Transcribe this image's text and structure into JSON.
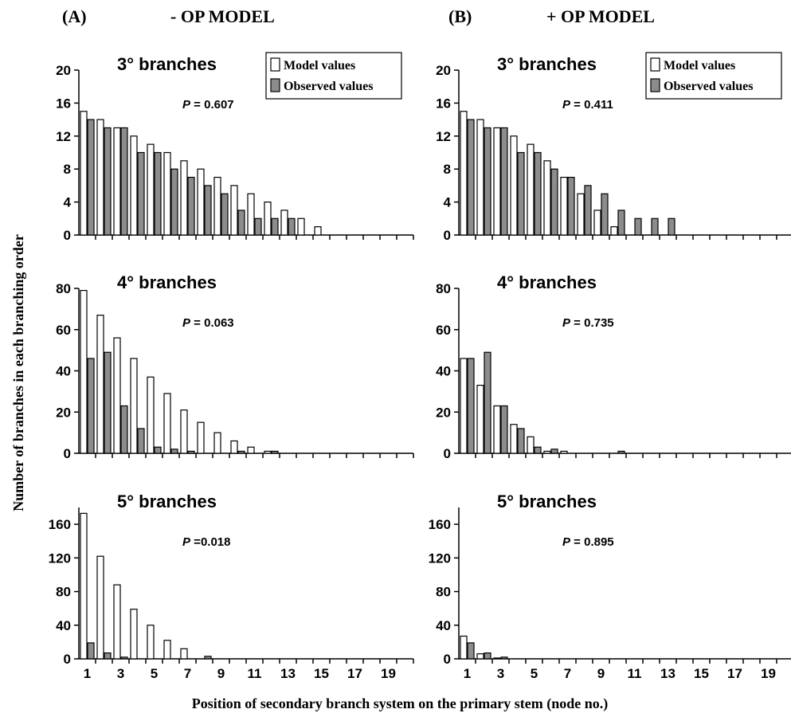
{
  "figure": {
    "header_left": "(A)",
    "title_left": "- OP MODEL",
    "header_right": "(B)",
    "title_right": "+ OP MODEL",
    "ylabel": "Number of branches in each branching order",
    "xlabel": "Position of secondary branch system on the primary stem (node no.)"
  },
  "legend": {
    "model": "Model values",
    "observed": "Observed values"
  },
  "colors": {
    "model_fill": "#ffffff",
    "observed_fill": "#8c8c8c",
    "stroke": "#000000"
  },
  "chart_data": [
    {
      "type": "bar",
      "panel": "A",
      "title": "3° branches",
      "p_label": "P",
      "p_value": "= 0.607",
      "x": [
        1,
        2,
        3,
        4,
        5,
        6,
        7,
        8,
        9,
        10,
        11,
        12,
        13,
        14,
        15,
        16,
        17,
        18,
        19,
        20
      ],
      "xticks": [
        "1",
        "3",
        "5",
        "7",
        "9",
        "11",
        "13",
        "15",
        "17",
        "19"
      ],
      "ylim": [
        0,
        20
      ],
      "yticks": [
        "0",
        "4",
        "8",
        "12",
        "16",
        "20"
      ],
      "legend": "top-right",
      "series": [
        {
          "name": "Model values",
          "values": [
            15,
            14,
            13,
            12,
            11,
            10,
            9,
            8,
            7,
            6,
            5,
            4,
            3,
            2,
            1,
            0,
            0,
            0,
            0,
            0
          ]
        },
        {
          "name": "Observed values",
          "values": [
            14,
            13,
            13,
            10,
            10,
            8,
            7,
            6,
            5,
            3,
            2,
            2,
            2,
            0,
            0,
            0,
            0,
            0,
            0,
            0
          ]
        }
      ]
    },
    {
      "type": "bar",
      "panel": "B",
      "title": "3° branches",
      "p_label": "P",
      "p_value": "= 0.411",
      "x": [
        1,
        2,
        3,
        4,
        5,
        6,
        7,
        8,
        9,
        10,
        11,
        12,
        13,
        14,
        15,
        16,
        17,
        18,
        19,
        20
      ],
      "xticks": [
        "1",
        "3",
        "5",
        "7",
        "9",
        "11",
        "13",
        "15",
        "17",
        "19"
      ],
      "ylim": [
        0,
        20
      ],
      "yticks": [
        "0",
        "4",
        "8",
        "12",
        "16",
        "20"
      ],
      "legend": "top-right",
      "series": [
        {
          "name": "Model values",
          "values": [
            15,
            14,
            13,
            12,
            11,
            9,
            7,
            5,
            3,
            1,
            0,
            0,
            0,
            0,
            0,
            0,
            0,
            0,
            0,
            0
          ]
        },
        {
          "name": "Observed values",
          "values": [
            14,
            13,
            13,
            10,
            10,
            8,
            7,
            6,
            5,
            3,
            2,
            2,
            2,
            0,
            0,
            0,
            0,
            0,
            0,
            0
          ]
        }
      ]
    },
    {
      "type": "bar",
      "panel": "A",
      "title": "4° branches",
      "p_label": "P",
      "p_value": "= 0.063",
      "x": [
        1,
        2,
        3,
        4,
        5,
        6,
        7,
        8,
        9,
        10,
        11,
        12,
        13,
        14,
        15,
        16,
        17,
        18,
        19,
        20
      ],
      "xticks": [
        "1",
        "3",
        "5",
        "7",
        "9",
        "11",
        "13",
        "15",
        "17",
        "19"
      ],
      "ylim": [
        0,
        80
      ],
      "yticks": [
        "0",
        "20",
        "40",
        "60",
        "80"
      ],
      "series": [
        {
          "name": "Model values",
          "values": [
            79,
            67,
            56,
            46,
            37,
            29,
            21,
            15,
            10,
            6,
            3,
            1,
            0,
            0,
            0,
            0,
            0,
            0,
            0,
            0
          ]
        },
        {
          "name": "Observed values",
          "values": [
            46,
            49,
            23,
            12,
            3,
            2,
            1,
            0,
            0,
            1,
            0,
            1,
            0,
            0,
            0,
            0,
            0,
            0,
            0,
            0
          ]
        }
      ]
    },
    {
      "type": "bar",
      "panel": "B",
      "title": "4° branches",
      "p_label": "P",
      "p_value": "= 0.735",
      "x": [
        1,
        2,
        3,
        4,
        5,
        6,
        7,
        8,
        9,
        10,
        11,
        12,
        13,
        14,
        15,
        16,
        17,
        18,
        19,
        20
      ],
      "xticks": [
        "1",
        "3",
        "5",
        "7",
        "9",
        "11",
        "13",
        "15",
        "17",
        "19"
      ],
      "ylim": [
        0,
        80
      ],
      "yticks": [
        "0",
        "20",
        "40",
        "60",
        "80"
      ],
      "series": [
        {
          "name": "Model values",
          "values": [
            46,
            33,
            23,
            14,
            8,
            1,
            1,
            0,
            0,
            0,
            0,
            0,
            0,
            0,
            0,
            0,
            0,
            0,
            0,
            0
          ]
        },
        {
          "name": "Observed values",
          "values": [
            46,
            49,
            23,
            12,
            3,
            2,
            0,
            0,
            0,
            1,
            0,
            0,
            0,
            0,
            0,
            0,
            0,
            0,
            0,
            0
          ]
        }
      ]
    },
    {
      "type": "bar",
      "panel": "A",
      "title": "5° branches",
      "p_label": "P",
      "p_value": "=0.018",
      "x": [
        1,
        2,
        3,
        4,
        5,
        6,
        7,
        8,
        9,
        10,
        11,
        12,
        13,
        14,
        15,
        16,
        17,
        18,
        19,
        20
      ],
      "xticks": [
        "1",
        "3",
        "5",
        "7",
        "9",
        "11",
        "13",
        "15",
        "17",
        "19"
      ],
      "ylim": [
        0,
        180
      ],
      "yticks": [
        "0",
        "40",
        "80",
        "120",
        "160"
      ],
      "series": [
        {
          "name": "Model values",
          "values": [
            173,
            122,
            88,
            59,
            40,
            22,
            12,
            0,
            0,
            0,
            0,
            0,
            0,
            0,
            0,
            0,
            0,
            0,
            0,
            0
          ]
        },
        {
          "name": "Observed values",
          "values": [
            19,
            7,
            2,
            0,
            0,
            0,
            0,
            3,
            0,
            0,
            0,
            0,
            0,
            0,
            0,
            0,
            0,
            0,
            0,
            0
          ]
        }
      ]
    },
    {
      "type": "bar",
      "panel": "B",
      "title": "5° branches",
      "p_label": "P",
      "p_value": "= 0.895",
      "x": [
        1,
        2,
        3,
        4,
        5,
        6,
        7,
        8,
        9,
        10,
        11,
        12,
        13,
        14,
        15,
        16,
        17,
        18,
        19,
        20
      ],
      "xticks": [
        "1",
        "3",
        "5",
        "7",
        "9",
        "11",
        "13",
        "15",
        "17",
        "19"
      ],
      "ylim": [
        0,
        180
      ],
      "yticks": [
        "0",
        "40",
        "80",
        "120",
        "160"
      ],
      "series": [
        {
          "name": "Model values",
          "values": [
            27,
            6,
            1,
            0,
            0,
            0,
            0,
            0,
            0,
            0,
            0,
            0,
            0,
            0,
            0,
            0,
            0,
            0,
            0,
            0
          ]
        },
        {
          "name": "Observed values",
          "values": [
            19,
            7,
            2,
            0,
            0,
            0,
            0,
            0,
            0,
            0,
            0,
            0,
            0,
            0,
            0,
            0,
            0,
            0,
            0,
            0
          ]
        }
      ]
    }
  ]
}
